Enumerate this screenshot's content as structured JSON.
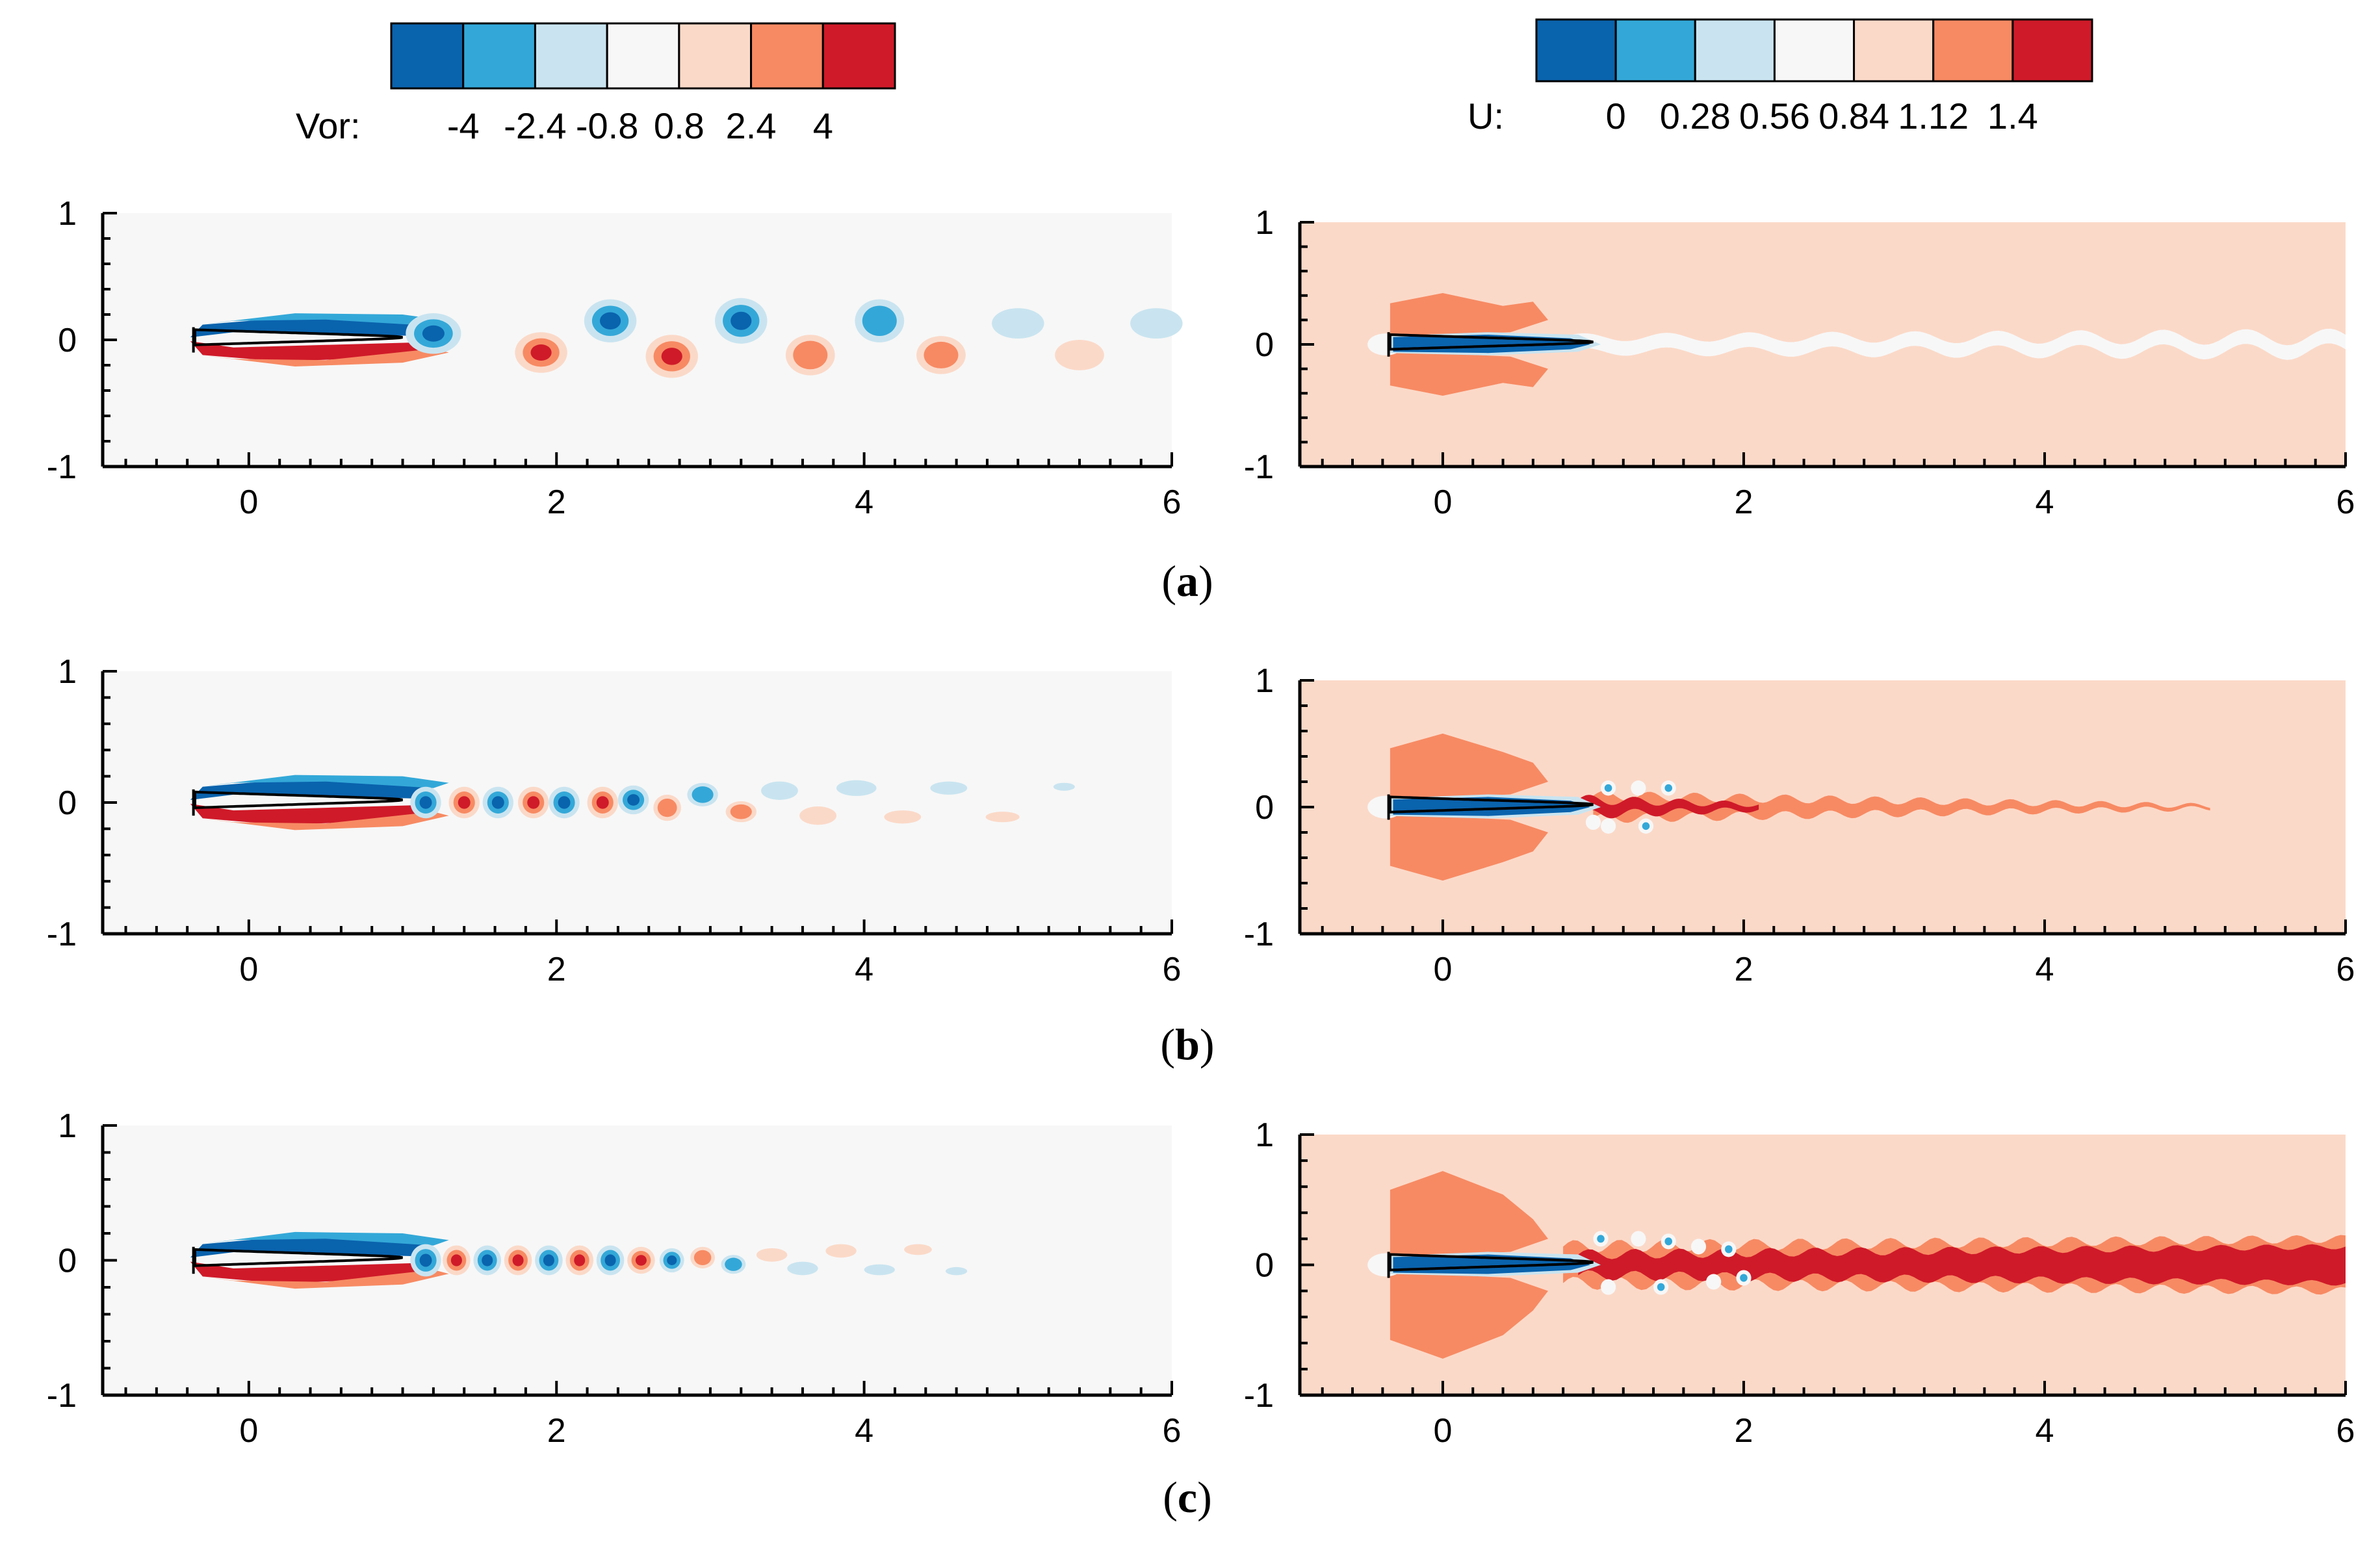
{
  "colorbars": {
    "vorticity": {
      "label": "Vor:",
      "colors": [
        "#0a63ad",
        "#33a8d8",
        "#c9e4f0",
        "#f7f7f7",
        "#fbd9c8",
        "#f78a63",
        "#cf1a29"
      ],
      "ticks": [
        "-4",
        "-2.4",
        "-0.8",
        "0.8",
        "2.4",
        "4"
      ]
    },
    "velocity": {
      "label": "U:",
      "colors": [
        "#0a63ad",
        "#33a8d8",
        "#c9e4f0",
        "#f7f7f7",
        "#fbd9c8",
        "#f78a63",
        "#cf1a29"
      ],
      "ticks": [
        "0",
        "0.28",
        "0.56",
        "0.84",
        "1.12",
        "1.4"
      ]
    }
  },
  "axes": {
    "x_ticks": [
      "0",
      "2",
      "4",
      "6"
    ],
    "y_ticks": [
      "1",
      "0",
      "-1"
    ]
  },
  "panels": [
    {
      "letter": "a",
      "label_open": "(",
      "label_close": ")"
    },
    {
      "letter": "b",
      "label_open": "(",
      "label_close": ")"
    },
    {
      "letter": "c",
      "label_open": "(",
      "label_close": ")"
    }
  ],
  "colors": {
    "field_background_vorticity": "#f7f7f7",
    "field_background_velocity": "#fbd9c8",
    "blue_dark": "#0a63ad",
    "blue_mid": "#33a8d8",
    "blue_light": "#c9e4f0",
    "red_light": "#fbd9c8",
    "red_mid": "#f78a63",
    "red_dark": "#cf1a29"
  }
}
